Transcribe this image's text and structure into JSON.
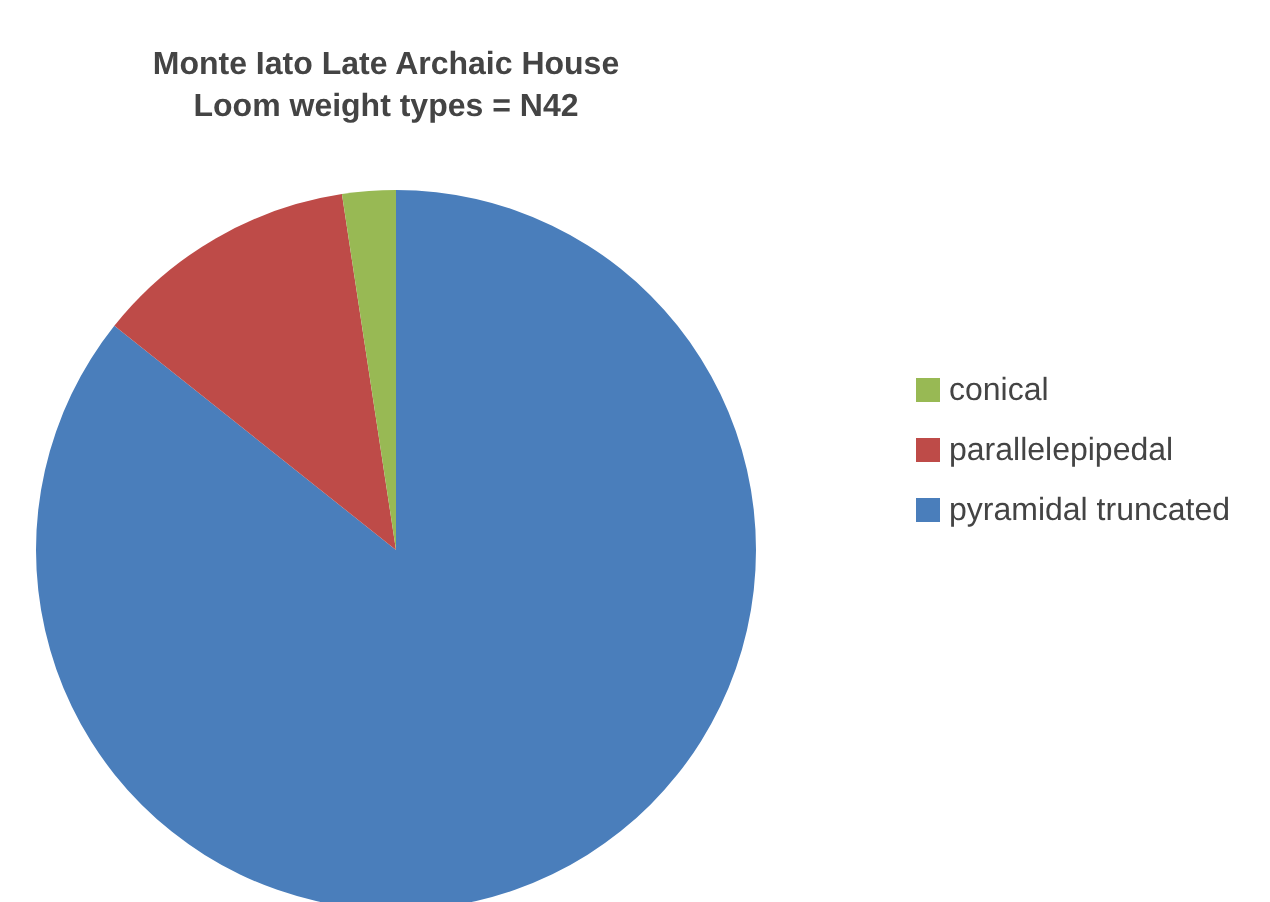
{
  "chart_data": {
    "type": "pie",
    "title": "Monte Iato Late Archaic House\nLoom weight types = N42",
    "categories": [
      "pyramidal truncated",
      "parallelepipedal",
      "conical"
    ],
    "values": [
      85.7,
      11.9,
      2.4
    ],
    "colors": [
      "#4a7ebb",
      "#be4b48",
      "#98b954"
    ],
    "legend": "right"
  }
}
